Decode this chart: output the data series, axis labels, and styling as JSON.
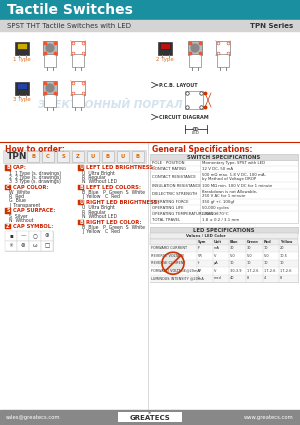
{
  "title": "Tactile Switches",
  "subtitle": "SPST THT Tactile Switches with LED",
  "series": "TPN Series",
  "header_bg": "#1a8fa0",
  "header_text_color": "#ffffff",
  "subheader_bg": "#d4d4d4",
  "subheader_text_color": "#333333",
  "body_bg": "#ffffff",
  "footer_bg": "#888888",
  "footer_text_color": "#ffffff",
  "red_color": "#cc2200",
  "orange_color": "#e07020",
  "switch_spec_title": "SWITCH SPECIFICATIONS",
  "led_spec_title": "LED SPECIFICATIONS",
  "switch_specs": [
    [
      "POLE · POSITION",
      "Momentary Type, SPST with LED"
    ],
    [
      "CONTACT RATING",
      "12 V DC, 50 mA"
    ],
    [
      "CONTACT RESISTANCE",
      "500 mΩ max. 1.8 V DC, 100 mA,\nby Method of Voltage DROP"
    ],
    [
      "INSULATION RESISTANCE",
      "100 MΩ min. 100 V DC for 1 minute"
    ],
    [
      "DIELECTRIC STRENGTH",
      "Breakdown is not Allowable,\n250 V AC for 1 minute"
    ],
    [
      "OPERATING FORCE",
      "350 gf +/- 100gf"
    ],
    [
      "OPERATING LIFE",
      "50,000 cycles"
    ],
    [
      "OPERATING TEMPERATURE RANGE",
      "-20°C ~ 70°C"
    ],
    [
      "TOTAL TRAVEL",
      "1.8 ± 0.2 / 3.1 mm"
    ]
  ],
  "led_col_headers": [
    "",
    "Sym",
    "Unit",
    "Blue",
    "Green",
    "Red",
    "Yellow"
  ],
  "led_rows": [
    [
      "FORWARD CURRENT",
      "IF",
      "mA",
      "30",
      "30",
      "10",
      "20"
    ],
    [
      "REVERSE VOLTAGE",
      "VR",
      "V",
      "5.0",
      "5.0",
      "5.0",
      "10.5"
    ],
    [
      "REVERSE CURRENT",
      "Ir",
      "μA",
      "10",
      "10",
      "10",
      "10"
    ],
    [
      "FORWARD VOLTAGE@20mA",
      "VF",
      "V",
      "3.0-3.9",
      "1.7-2.6",
      "1.7-2.6",
      "1.7-2.6"
    ],
    [
      "LUMINOUS INTENSITY @20mA",
      "Iv",
      "mcd",
      "40",
      "8",
      "4",
      "8"
    ]
  ],
  "order_left": [
    {
      "code": "B",
      "label": "CAP:",
      "items": [
        "1  1 Type (s. drawings)",
        "2  2 Type (s. drawings)",
        "3  3 Type (s. drawings)"
      ]
    },
    {
      "code": "C",
      "label": "CAP COLOR:",
      "items": [
        "W  White",
        "R  Red",
        "G  Blue",
        "J  Transparent"
      ]
    },
    {
      "code": "S",
      "label": "CAP SURFACE:",
      "items": [
        "S  Silver",
        "N  Without"
      ]
    },
    {
      "code": "Z",
      "label": "CAP SYMBOL:",
      "items": []
    }
  ],
  "order_right": [
    {
      "code": "U",
      "label": "LEFT LED BRIGHTNESS:",
      "items": [
        "U  Ultra Bright",
        "R  Regular",
        "N  Without LED"
      ]
    },
    {
      "code": "B",
      "label": "LEFT LED COLORS:",
      "items": [
        "B  Blue   P  Green  S  White",
        "J  Yellow   C  Red"
      ]
    },
    {
      "code": "U",
      "label": "RIGHT LED BRIGHTNESS:",
      "items": [
        "U  Ultra Bright",
        "R  Regular",
        "N  Without LED"
      ]
    },
    {
      "code": "B",
      "label": "RIGHT LED COLOR:",
      "items": [
        "B  Blue   P  Green  S  White",
        "J  Yellow   C  Red"
      ]
    }
  ],
  "tpn_boxes": [
    "B",
    "C",
    "S",
    "Z",
    "U",
    "B",
    "U",
    "B"
  ]
}
